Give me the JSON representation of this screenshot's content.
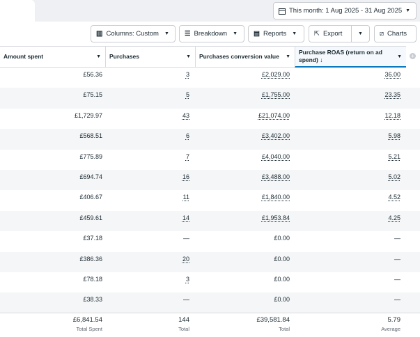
{
  "toolbar": {
    "date_range": "This month: 1 Aug 2025 - 31 Aug 2025",
    "buttons": [
      "Columns: Custom",
      "Breakdown",
      "Reports",
      "Export",
      "Charts"
    ]
  },
  "table": {
    "columns": [
      "Amount spent",
      "Purchases",
      "Purchases conversion value",
      "Purchase ROAS (return on ad spend) ↓"
    ],
    "rows": [
      [
        "£56.36",
        "3",
        "£2,029.00",
        "36.00"
      ],
      [
        "£75.15",
        "5",
        "£1,755.00",
        "23.35"
      ],
      [
        "£1,729.97",
        "43",
        "£21,074.00",
        "12.18"
      ],
      [
        "£568.51",
        "6",
        "£3,402.00",
        "5.98"
      ],
      [
        "£775.89",
        "7",
        "£4,040.00",
        "5.21"
      ],
      [
        "£694.74",
        "16",
        "£3,488.00",
        "5.02"
      ],
      [
        "£406.67",
        "11",
        "£1,840.00",
        "4.52"
      ],
      [
        "£459.61",
        "14",
        "£1,953.84",
        "4.25"
      ],
      [
        "£37.18",
        "—",
        "£0.00",
        "—"
      ],
      [
        "£386.36",
        "20",
        "£0.00",
        "—"
      ],
      [
        "£78.18",
        "3",
        "£0.00",
        "—"
      ],
      [
        "£38.33",
        "—",
        "£0.00",
        "—"
      ]
    ],
    "totals": [
      {
        "value": "£6,841.54",
        "label": "Total Spent"
      },
      {
        "value": "144",
        "label": "Total"
      },
      {
        "value": "£39,581.84",
        "label": "Total"
      },
      {
        "value": "5.79",
        "label": "Average"
      }
    ]
  }
}
